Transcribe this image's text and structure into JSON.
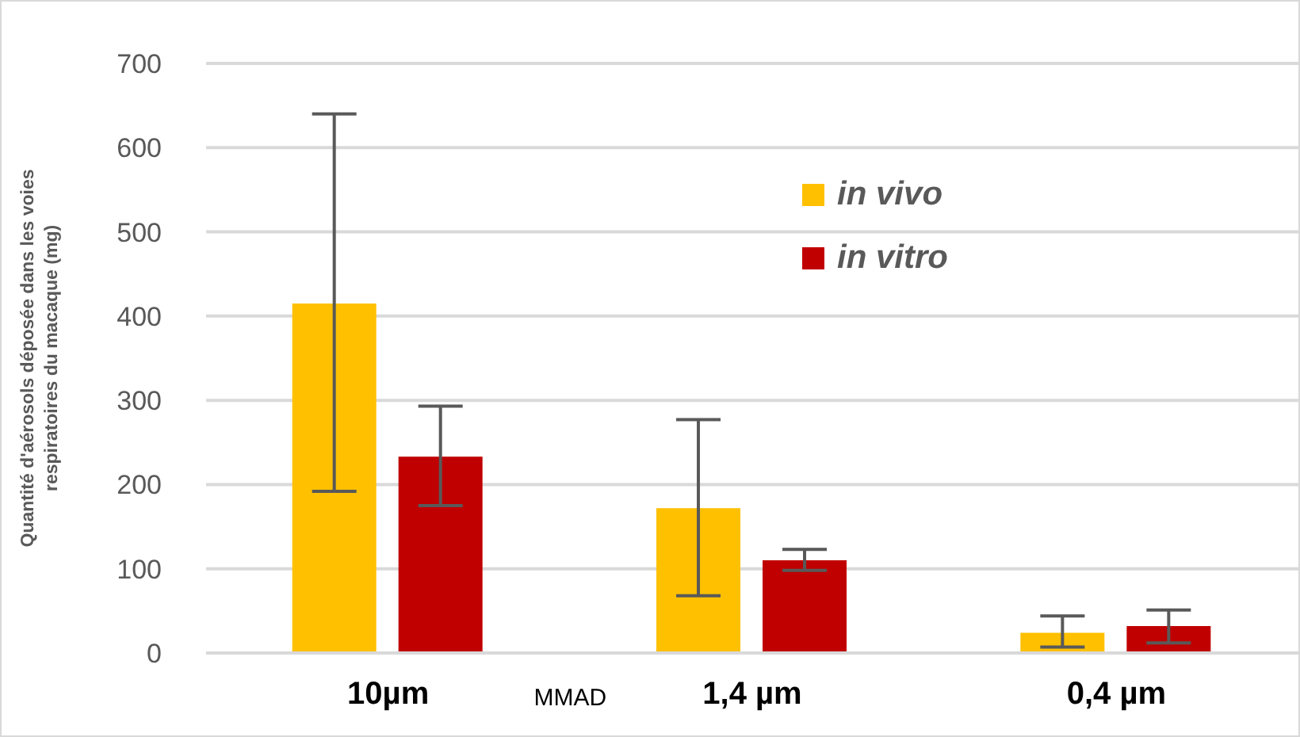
{
  "chart_data": {
    "type": "bar",
    "categories": [
      "10µm",
      "1,4 µm",
      "0,4 µm"
    ],
    "xlabel": "MMAD",
    "ylabel": "Quantité d'aérosols déposée dans les voies respiratoires du macaque  (mg)",
    "series": [
      {
        "name": "in vivo",
        "color": "#ffc000",
        "values": [
          415,
          172,
          24
        ],
        "errors": [
          [
            192,
            640
          ],
          [
            68,
            277
          ],
          [
            7,
            44
          ]
        ]
      },
      {
        "name": "in vitro",
        "color": "#c00000",
        "values": [
          233,
          110,
          32
        ],
        "errors": [
          [
            175,
            293
          ],
          [
            98,
            123
          ],
          [
            12,
            51
          ]
        ]
      }
    ],
    "ylim": [
      0,
      700
    ],
    "yticks": [
      0,
      100,
      200,
      300,
      400,
      500,
      600,
      700
    ],
    "grid": "y",
    "legend": "top"
  }
}
